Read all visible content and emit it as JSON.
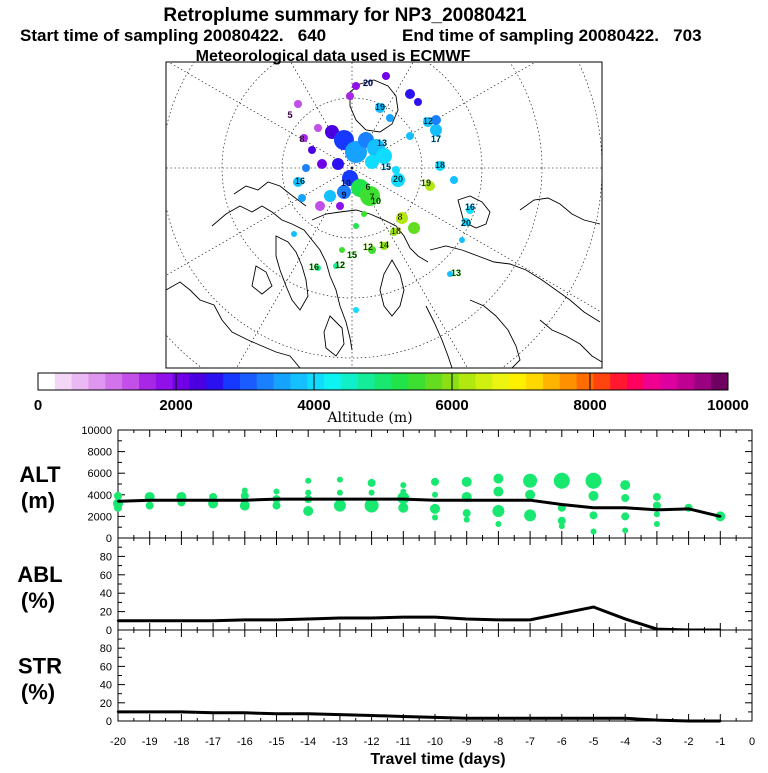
{
  "title": {
    "line1": "Retroplume summary for NP3_20080421",
    "line2_start": "Start time of sampling 20080422.   640",
    "line2_end": "End time of sampling 20080422.   703",
    "line3": "Meteorological data used is ECMWF"
  },
  "colorbar": {
    "label": "Altitude (m)",
    "ticks": [
      "0",
      "2000",
      "4000",
      "6000",
      "8000",
      "10000"
    ],
    "range": [
      0,
      10000
    ],
    "colors": [
      "#ffffff",
      "#f4d6f7",
      "#eab8f3",
      "#df96ef",
      "#d273eb",
      "#c24fe8",
      "#a826e6",
      "#8f10e8",
      "#7000e6",
      "#4a00e0",
      "#2b10f0",
      "#1638ff",
      "#1a5cff",
      "#1b80ff",
      "#16a2ff",
      "#14c0ff",
      "#10dcff",
      "#0ef2f2",
      "#10f0c8",
      "#14ec9a",
      "#18e870",
      "#20e44a",
      "#3de030",
      "#64dc20",
      "#8ae014",
      "#b0e810",
      "#d0f010",
      "#ecf410",
      "#fff000",
      "#ffd800",
      "#ffb400",
      "#ff9000",
      "#ff6c00",
      "#ff4410",
      "#ff1830",
      "#ff0060",
      "#f00090",
      "#dc00a0",
      "#c00090",
      "#9a0080",
      "#6e0060"
    ]
  },
  "map": {
    "labels": [
      {
        "t": "20",
        "c": "#3050ff"
      },
      {
        "t": "5",
        "c": "#c060e0"
      },
      {
        "t": "8",
        "c": "#c060e0"
      },
      {
        "t": "19",
        "c": "#14c0ff"
      },
      {
        "t": "12",
        "c": "#14c0ff"
      },
      {
        "t": "17",
        "c": "#14c0ff"
      },
      {
        "t": "13",
        "c": "#14c0ff"
      },
      {
        "t": "18",
        "c": "#14c0ff"
      },
      {
        "t": "20",
        "c": "#10dcff"
      },
      {
        "t": "19",
        "c": "#8ae014"
      },
      {
        "t": "16",
        "c": "#14c0ff"
      },
      {
        "t": "20",
        "c": "#14c0ff"
      },
      {
        "t": "15",
        "c": "#14c0ff"
      },
      {
        "t": "8",
        "c": "#d0f010"
      },
      {
        "t": "18",
        "c": "#d0f010"
      },
      {
        "t": "7",
        "c": "#3de030"
      },
      {
        "t": "10",
        "c": "#3de030"
      },
      {
        "t": "6",
        "c": "#3de030"
      },
      {
        "t": "16",
        "c": "#14c0ff"
      },
      {
        "t": "10",
        "c": "#1a5cff"
      },
      {
        "t": "9",
        "c": "#1a5cff"
      },
      {
        "t": "14",
        "c": "#8ae014"
      },
      {
        "t": "12",
        "c": "#8ae014"
      },
      {
        "t": "15",
        "c": "#3de030"
      },
      {
        "t": "16",
        "c": "#3de030"
      },
      {
        "t": "12",
        "c": "#3de030"
      },
      {
        "t": "13",
        "c": "#3de030"
      }
    ]
  },
  "chart_data": [
    {
      "type": "scatter",
      "name": "ALT",
      "ylabel_lines": [
        "ALT",
        "(m)"
      ],
      "ylim": [
        0,
        10000
      ],
      "yticks": [
        0,
        2000,
        4000,
        6000,
        8000,
        10000
      ],
      "ytick_labels": [
        "0",
        "2000",
        "4000",
        "6000",
        "8000",
        "10000"
      ],
      "line": {
        "x": [
          -20,
          -19,
          -18,
          -17,
          -16,
          -15,
          -14,
          -13,
          -12,
          -11,
          -10,
          -9,
          -8,
          -7,
          -6,
          -5,
          -4,
          -3,
          -2,
          -1
        ],
        "y": [
          3400,
          3500,
          3500,
          3500,
          3500,
          3600,
          3600,
          3600,
          3600,
          3600,
          3500,
          3500,
          3500,
          3500,
          3100,
          2800,
          2800,
          2600,
          2700,
          2000
        ]
      },
      "points": [
        {
          "x": -20,
          "y": 3900,
          "s": 4
        },
        {
          "x": -20,
          "y": 3200,
          "s": 5
        },
        {
          "x": -20,
          "y": 2800,
          "s": 4
        },
        {
          "x": -19,
          "y": 3800,
          "s": 5
        },
        {
          "x": -19,
          "y": 3000,
          "s": 4
        },
        {
          "x": -18,
          "y": 3800,
          "s": 5
        },
        {
          "x": -18,
          "y": 3300,
          "s": 4
        },
        {
          "x": -17,
          "y": 3800,
          "s": 4
        },
        {
          "x": -17,
          "y": 3200,
          "s": 5
        },
        {
          "x": -16,
          "y": 4400,
          "s": 3
        },
        {
          "x": -16,
          "y": 3900,
          "s": 4
        },
        {
          "x": -16,
          "y": 3000,
          "s": 5
        },
        {
          "x": -15,
          "y": 4300,
          "s": 3
        },
        {
          "x": -15,
          "y": 3600,
          "s": 4
        },
        {
          "x": -15,
          "y": 3000,
          "s": 4
        },
        {
          "x": -14,
          "y": 5300,
          "s": 3
        },
        {
          "x": -14,
          "y": 4200,
          "s": 3
        },
        {
          "x": -14,
          "y": 3600,
          "s": 4
        },
        {
          "x": -14,
          "y": 2500,
          "s": 5
        },
        {
          "x": -13,
          "y": 5400,
          "s": 3
        },
        {
          "x": -13,
          "y": 4200,
          "s": 3
        },
        {
          "x": -13,
          "y": 3000,
          "s": 6
        },
        {
          "x": -12,
          "y": 5100,
          "s": 4
        },
        {
          "x": -12,
          "y": 4200,
          "s": 3
        },
        {
          "x": -12,
          "y": 3000,
          "s": 7
        },
        {
          "x": -11,
          "y": 4900,
          "s": 3
        },
        {
          "x": -11,
          "y": 4300,
          "s": 3
        },
        {
          "x": -11,
          "y": 3700,
          "s": 6
        },
        {
          "x": -11,
          "y": 2800,
          "s": 5
        },
        {
          "x": -10,
          "y": 5200,
          "s": 4
        },
        {
          "x": -10,
          "y": 4000,
          "s": 3
        },
        {
          "x": -10,
          "y": 2700,
          "s": 5
        },
        {
          "x": -10,
          "y": 1900,
          "s": 3
        },
        {
          "x": -9,
          "y": 5200,
          "s": 5
        },
        {
          "x": -9,
          "y": 3800,
          "s": 5
        },
        {
          "x": -9,
          "y": 2300,
          "s": 4
        },
        {
          "x": -9,
          "y": 1700,
          "s": 3
        },
        {
          "x": -8,
          "y": 5500,
          "s": 5
        },
        {
          "x": -8,
          "y": 4300,
          "s": 5
        },
        {
          "x": -8,
          "y": 2500,
          "s": 6
        },
        {
          "x": -8,
          "y": 1300,
          "s": 3
        },
        {
          "x": -7,
          "y": 5300,
          "s": 7
        },
        {
          "x": -7,
          "y": 4000,
          "s": 5
        },
        {
          "x": -7,
          "y": 2100,
          "s": 6
        },
        {
          "x": -6,
          "y": 5300,
          "s": 8
        },
        {
          "x": -6,
          "y": 2800,
          "s": 4
        },
        {
          "x": -6,
          "y": 1600,
          "s": 4
        },
        {
          "x": -6,
          "y": 1100,
          "s": 3
        },
        {
          "x": -5,
          "y": 5300,
          "s": 8
        },
        {
          "x": -5,
          "y": 3900,
          "s": 5
        },
        {
          "x": -5,
          "y": 2100,
          "s": 4
        },
        {
          "x": -5,
          "y": 600,
          "s": 3
        },
        {
          "x": -4,
          "y": 4900,
          "s": 5
        },
        {
          "x": -4,
          "y": 3700,
          "s": 4
        },
        {
          "x": -4,
          "y": 2000,
          "s": 4
        },
        {
          "x": -4,
          "y": 700,
          "s": 3
        },
        {
          "x": -3,
          "y": 3800,
          "s": 4
        },
        {
          "x": -3,
          "y": 3000,
          "s": 4
        },
        {
          "x": -3,
          "y": 2200,
          "s": 3
        },
        {
          "x": -3,
          "y": 1300,
          "s": 3
        },
        {
          "x": -2,
          "y": 2800,
          "s": 4
        },
        {
          "x": -1,
          "y": 2000,
          "s": 5
        }
      ]
    },
    {
      "type": "line",
      "name": "ABL",
      "ylabel_lines": [
        "ABL",
        "(%)"
      ],
      "ylim": [
        0,
        100
      ],
      "yticks": [
        0,
        20,
        40,
        60,
        80
      ],
      "ytick_labels": [
        "0",
        "20",
        "40",
        "60",
        "80"
      ],
      "x": [
        -20,
        -19,
        -18,
        -17,
        -16,
        -15,
        -14,
        -13,
        -12,
        -11,
        -10,
        -9,
        -8,
        -7,
        -6,
        -5,
        -4,
        -3,
        -2,
        -1
      ],
      "y": [
        10,
        10,
        10,
        10,
        11,
        11,
        12,
        13,
        13,
        14,
        14,
        12,
        11,
        11,
        18,
        25,
        12,
        1,
        0,
        0
      ]
    },
    {
      "type": "line",
      "name": "STR",
      "ylabel_lines": [
        "STR",
        "(%)"
      ],
      "ylim": [
        0,
        100
      ],
      "yticks": [
        0,
        20,
        40,
        60,
        80
      ],
      "ytick_labels": [
        "0",
        "20",
        "40",
        "60",
        "80"
      ],
      "x": [
        -20,
        -19,
        -18,
        -17,
        -16,
        -15,
        -14,
        -13,
        -12,
        -11,
        -10,
        -9,
        -8,
        -7,
        -6,
        -5,
        -4,
        -3,
        -2,
        -1
      ],
      "y": [
        10,
        10,
        10,
        9,
        9,
        8,
        8,
        7,
        6,
        5,
        4,
        3,
        3,
        3,
        3,
        3,
        3,
        1,
        0,
        0
      ],
      "xlabel": "Travel time (days)",
      "xlim": [
        -20,
        0
      ],
      "xtick_labels": [
        "-20",
        "-19",
        "-18",
        "-17",
        "-16",
        "-15",
        "-14",
        "-13",
        "-12",
        "-11",
        "-10",
        "-9",
        "-8",
        "-7",
        "-6",
        "-5",
        "-4",
        "-3",
        "-2",
        "-1",
        "0"
      ]
    }
  ]
}
